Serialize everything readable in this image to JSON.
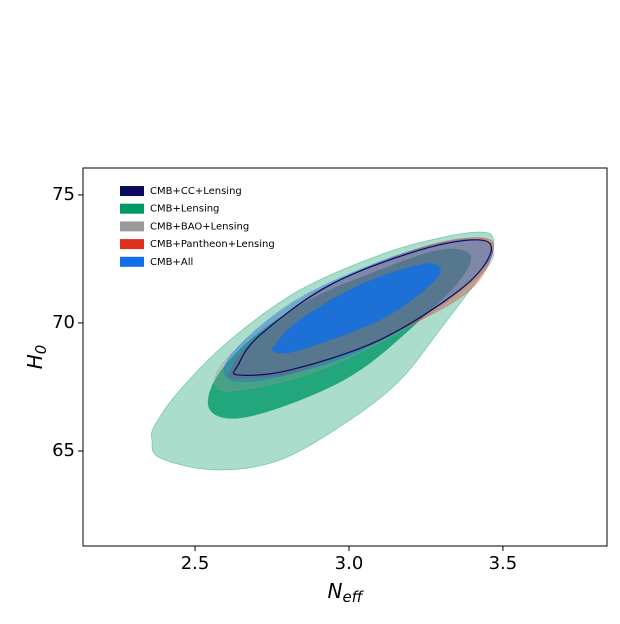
{
  "chart_data": {
    "type": "contour",
    "xlabel": {
      "main": "N",
      "sub": "eff"
    },
    "ylabel": {
      "main": "H",
      "sub": "0"
    },
    "xlim": [
      2.136,
      3.838
    ],
    "ylim": [
      61.29,
      76.05
    ],
    "xticks": [
      2.5,
      {
        "value": 3,
        "label": "3.0"
      },
      3.5
    ],
    "yticks": [
      65,
      70,
      75
    ],
    "legend": "upper left",
    "series": [
      {
        "name": "CMB+CC+Lensing",
        "color": "#0a0a5e",
        "style": "line",
        "contours": [
          {
            "x": [
              2.64,
              2.808,
              3.101,
              3.36,
              3.458,
              3.425,
              3.231,
              2.938,
              2.711,
              2.64
            ],
            "y": [
              67.97,
              68.16,
              69.34,
              71.29,
              72.66,
              73.24,
              72.85,
              71.48,
              69.53,
              68.36
            ]
          }
        ]
      },
      {
        "name": "CMB+Lensing",
        "color": "#009966",
        "style": "fill",
        "contours": [
          {
            "x": [
              2.36,
              2.386,
              2.565,
              2.776,
              3.003,
              3.166,
              3.295,
              3.393,
              3.458,
              3.468,
              3.425,
              3.295,
              3.101,
              2.841,
              2.614,
              2.451,
              2.37
            ],
            "y": [
              65.43,
              64.73,
              64.26,
              64.65,
              66.21,
              67.77,
              69.73,
              71.29,
              72.46,
              73.32,
              73.55,
              73.32,
              72.66,
              71.29,
              69.34,
              67.38,
              66.02
            ]
          },
          {
            "x": [
              2.549,
              2.646,
              2.841,
              3.036,
              3.231,
              3.36,
              3.393,
              3.295,
              3.101,
              2.873,
              2.679,
              2.565
            ],
            "y": [
              66.6,
              66.29,
              66.99,
              68.16,
              70.12,
              71.68,
              72.66,
              72.85,
              72.07,
              70.9,
              69.34,
              67.77
            ]
          }
        ]
      },
      {
        "name": "CMB+BAO+Lensing",
        "color": "#999999",
        "style": "fill",
        "contours": [
          {
            "x": [
              2.565,
              2.646,
              2.906,
              3.231,
              3.442,
              3.464,
              3.393,
              3.166,
              2.841,
              2.614
            ],
            "y": [
              67.58,
              67.38,
              68.16,
              70.12,
              72.07,
              73.05,
              73.32,
              72.66,
              70.9,
              68.75
            ]
          }
        ]
      },
      {
        "name": "CMB+Pantheon+Lensing",
        "color": "#e03020",
        "style": "fill",
        "contours": [
          {
            "x": [
              2.63,
              2.841,
              3.166,
              3.393,
              3.468,
              3.425,
              3.231,
              2.906,
              2.679,
              2.62
            ],
            "y": [
              67.85,
              68.16,
              69.73,
              71.29,
              72.85,
              73.32,
              72.93,
              71.29,
              69.14,
              68.24
            ]
          }
        ]
      },
      {
        "name": "CMB+All",
        "color": "#0f6ee8",
        "style": "fill",
        "contours": [
          {
            "x": [
              2.597,
              2.711,
              3.003,
              3.295,
              3.451,
              3.451,
              3.36,
              3.133,
              2.841,
              2.646
            ],
            "y": [
              67.97,
              67.77,
              68.75,
              70.7,
              72.38,
              73.05,
              73.24,
              72.54,
              70.98,
              69.14
            ]
          },
          {
            "x": [
              2.76,
              2.841,
              3.101,
              3.263,
              3.295,
              3.231,
              3.036,
              2.841,
              2.76
            ],
            "y": [
              68.87,
              68.95,
              70.12,
              71.48,
              72.15,
              72.27,
              71.48,
              70.12,
              69.14
            ]
          }
        ]
      }
    ]
  }
}
